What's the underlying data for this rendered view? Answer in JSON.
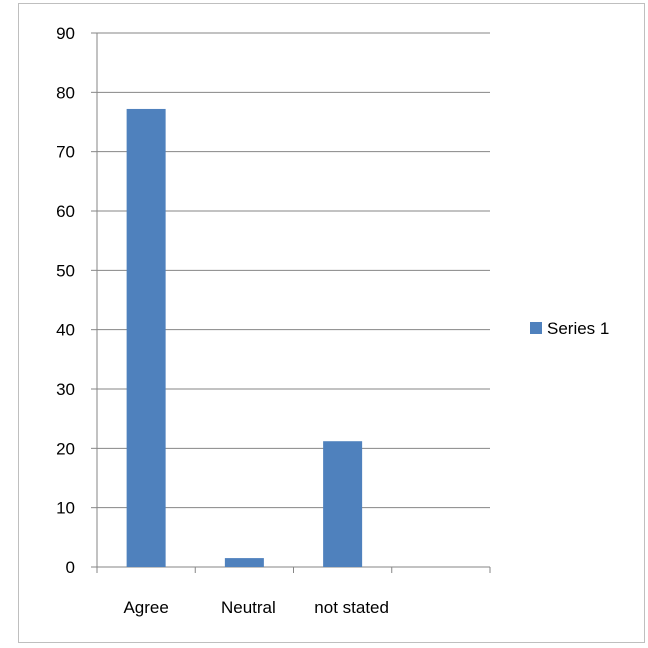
{
  "chart_data": {
    "type": "bar",
    "title": "",
    "xlabel": "",
    "ylabel": "",
    "categories": [
      "Agree",
      "Neutral",
      "not stated",
      ""
    ],
    "series": [
      {
        "name": "Series 1",
        "values": [
          77.2,
          1.5,
          21.2,
          0
        ],
        "color": "#4f81bd"
      }
    ],
    "ylim": [
      0,
      90
    ],
    "yticks": [
      0,
      10,
      20,
      30,
      40,
      50,
      60,
      70,
      80,
      90
    ],
    "grid": true,
    "legend_position": "right"
  }
}
